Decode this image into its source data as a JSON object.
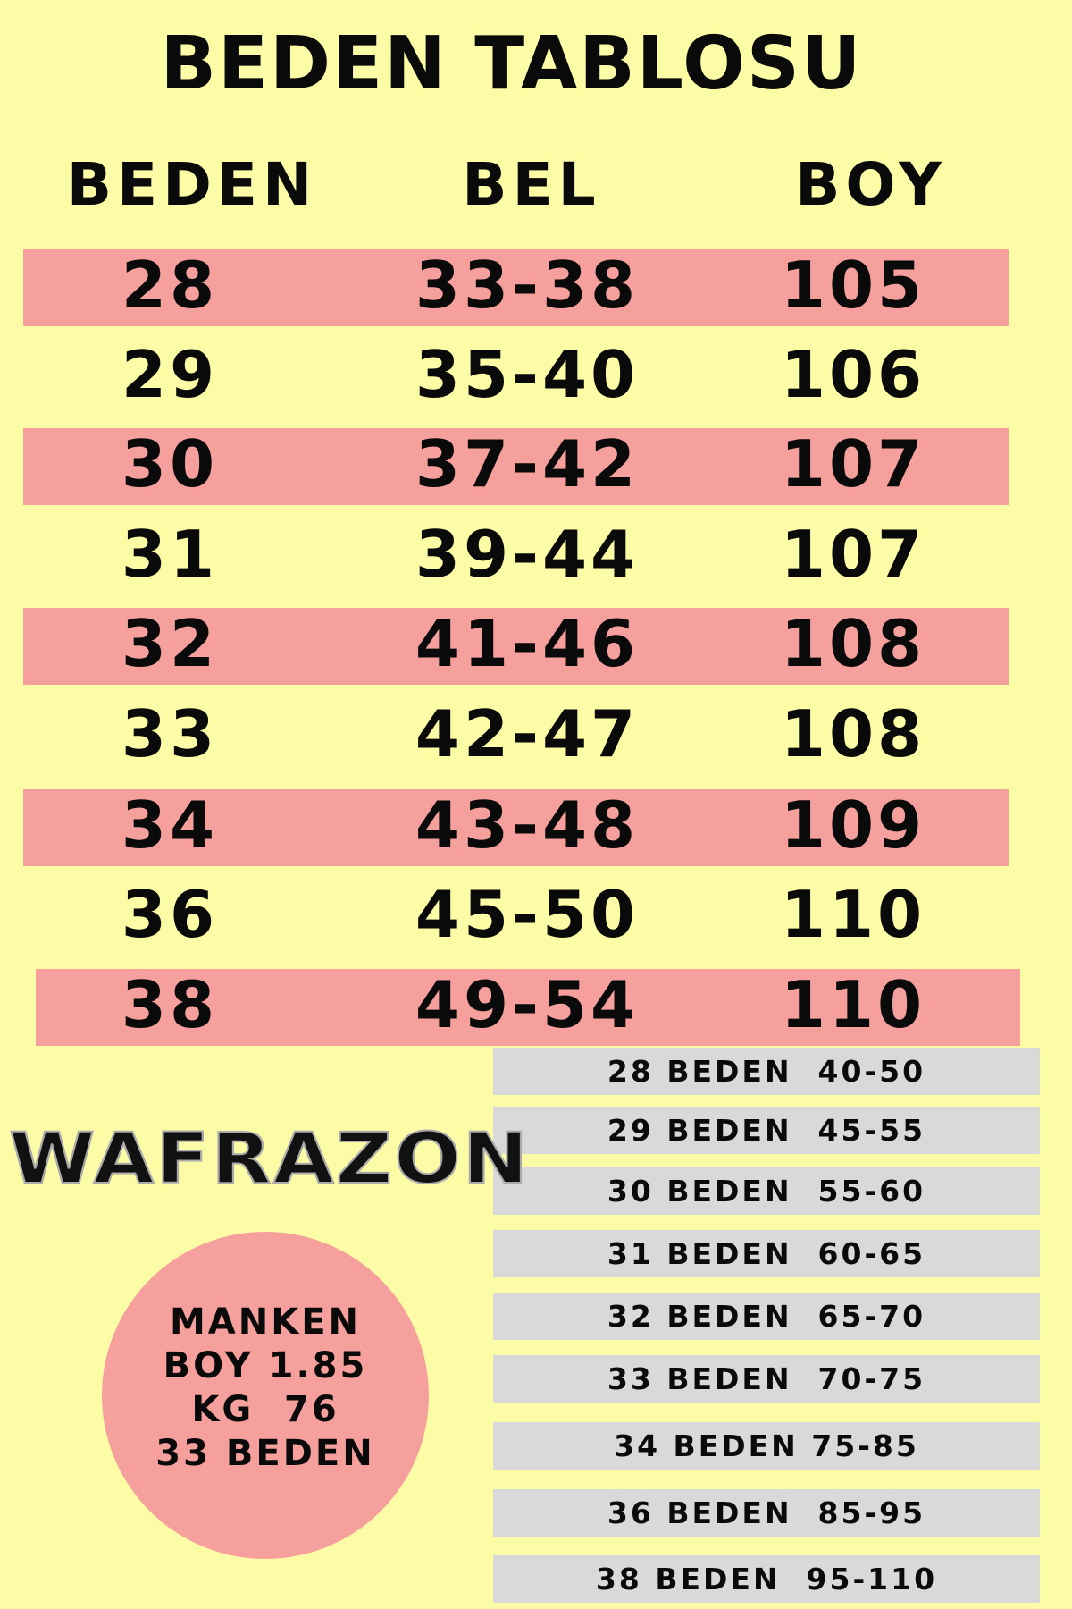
{
  "title": "BEDEN TABLOSU",
  "headers": {
    "size": "BEDEN",
    "waist": "BEL",
    "length": "BOY"
  },
  "rows": [
    {
      "size": "28",
      "waist": "33-38",
      "length": "105"
    },
    {
      "size": "29",
      "waist": "35-40",
      "length": "106"
    },
    {
      "size": "30",
      "waist": "37-42",
      "length": "107"
    },
    {
      "size": "31",
      "waist": "39-44",
      "length": "107"
    },
    {
      "size": "32",
      "waist": "41-46",
      "length": "108"
    },
    {
      "size": "33",
      "waist": "42-47",
      "length": "108"
    },
    {
      "size": "34",
      "waist": "43-48",
      "length": "109"
    },
    {
      "size": "36",
      "waist": "45-50",
      "length": "110"
    },
    {
      "size": "38",
      "waist": "49-54",
      "length": "110"
    }
  ],
  "weight_guide": [
    "28 BEDEN  40-50",
    "29 BEDEN  45-55",
    "30 BEDEN  55-60",
    "31 BEDEN  60-65",
    "32 BEDEN  65-70",
    "33 BEDEN  70-75",
    "34 BEDEN 75-85",
    "36 BEDEN  85-95",
    "38 BEDEN  95-110"
  ],
  "brand": "WAFRAZON",
  "model_info": [
    "MANKEN",
    "BOY 1.85",
    "KG  76",
    "33 BEDEN"
  ],
  "colors": {
    "background": "#fdfca6",
    "stripe": "#f5a09d",
    "guide_box": "#d9d9d9",
    "text": "#0a0a0a"
  }
}
